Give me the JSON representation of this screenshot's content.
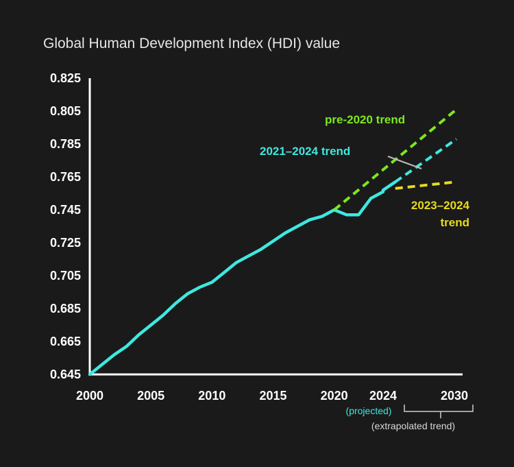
{
  "chart_data": {
    "type": "line",
    "title": "Global Human Development Index (HDI) value",
    "xlabel": "",
    "ylabel": "",
    "xlim": [
      2000,
      2030
    ],
    "ylim": [
      0.645,
      0.825
    ],
    "y_ticks": [
      "0.825",
      "0.805",
      "0.785",
      "0.765",
      "0.745",
      "0.725",
      "0.705",
      "0.685",
      "0.665",
      "0.645"
    ],
    "x_ticks": [
      {
        "value": 2000,
        "label": "2000"
      },
      {
        "value": 2005,
        "label": "2005"
      },
      {
        "value": 2010,
        "label": "2010"
      },
      {
        "value": 2015,
        "label": "2015"
      },
      {
        "value": 2020,
        "label": "2020"
      },
      {
        "value": 2024,
        "label": "2024"
      },
      {
        "value": 2030,
        "label": "2030"
      }
    ],
    "grid": false,
    "series": [
      {
        "name": "",
        "style": "solid",
        "color": "#3ee8e0",
        "x": [
          2000,
          2001,
          2002,
          2003,
          2004,
          2005,
          2006,
          2007,
          2008,
          2009,
          2010,
          2011,
          2012,
          2013,
          2014,
          2015,
          2016,
          2017,
          2018,
          2019,
          2020,
          2021,
          2022,
          2023,
          2024
        ],
        "y": [
          0.645,
          0.651,
          0.657,
          0.662,
          0.669,
          0.675,
          0.681,
          0.688,
          0.694,
          0.698,
          0.701,
          0.707,
          0.713,
          0.717,
          0.721,
          0.726,
          0.731,
          0.735,
          0.739,
          0.741,
          0.745,
          0.742,
          0.742,
          0.752,
          0.756
        ]
      },
      {
        "name": "",
        "style": "solid",
        "color": "#3ee8e0",
        "x": [
          2024,
          2025
        ],
        "y": [
          0.757,
          0.762
        ]
      },
      {
        "name": "pre-2020 trend",
        "style": "dashed",
        "color": "#7de81e",
        "x": [
          2020,
          2030
        ],
        "y": [
          0.745,
          0.806
        ]
      },
      {
        "name": "2021–2024 trend",
        "style": "dashed",
        "color": "#3ee8e0",
        "x": [
          2025,
          2030
        ],
        "y": [
          0.762,
          0.788
        ]
      },
      {
        "name": "2023–2024 trend",
        "style": "dashed",
        "color": "#e6dc1e",
        "x": [
          2025,
          2030
        ],
        "y": [
          0.758,
          0.762
        ]
      }
    ],
    "annotations": {
      "pre2020": "pre-2020 trend",
      "trend_2021_2024": "2021–2024 trend",
      "trend_2023_2024_line1": "2023–2024",
      "trend_2023_2024_line2": "trend",
      "projected": "(projected)",
      "extrapolated": "(extrapolated trend)"
    },
    "colors": {
      "hdi": "#3ee8e0",
      "pre2020": "#7de81e",
      "trend2324": "#e6dc1e",
      "axis": "#ffffff"
    }
  }
}
